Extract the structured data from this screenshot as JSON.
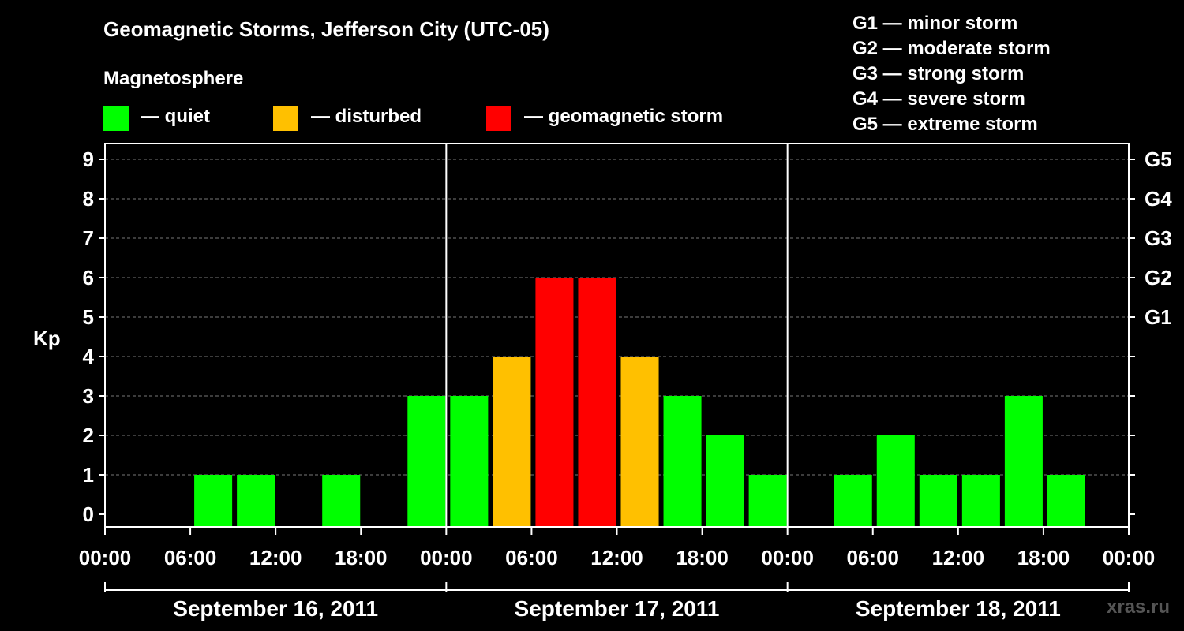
{
  "title": "Geomagnetic Storms, Jefferson City (UTC-05)",
  "subtitle": "Magnetosphere",
  "legend": [
    {
      "label": "— quiet",
      "color": "#00ff00"
    },
    {
      "label": "— disturbed",
      "color": "#ffc000"
    },
    {
      "label": "— geomagnetic storm",
      "color": "#ff0000"
    }
  ],
  "g_scale": [
    "G1 — minor storm",
    "G2 — moderate storm",
    "G3 — strong storm",
    "G4 — severe storm",
    "G5 — extreme storm"
  ],
  "watermark": "xras.ru",
  "chart_data": {
    "type": "bar",
    "ylabel": "Kp",
    "ylim": [
      0,
      9
    ],
    "y_ticks": [
      "0",
      "1",
      "2",
      "3",
      "4",
      "5",
      "6",
      "7",
      "8",
      "9"
    ],
    "right_ticks": [
      {
        "level": 5,
        "label": "G1"
      },
      {
        "level": 6,
        "label": "G2"
      },
      {
        "level": 7,
        "label": "G3"
      },
      {
        "level": 8,
        "label": "G4"
      },
      {
        "level": 9,
        "label": "G5"
      }
    ],
    "x_tick_labels": [
      "00:00",
      "06:00",
      "12:00",
      "18:00",
      "00:00",
      "06:00",
      "12:00",
      "18:00",
      "00:00",
      "06:00",
      "12:00",
      "18:00",
      "00:00"
    ],
    "days": [
      "September 16, 2011",
      "September 17, 2011",
      "September 18, 2011"
    ],
    "interval_hours": 3,
    "values": [
      0,
      0,
      1,
      1,
      0,
      1,
      0,
      3,
      3,
      4,
      6,
      6,
      4,
      3,
      2,
      1,
      0,
      1,
      2,
      1,
      1,
      3,
      1,
      0
    ],
    "colors": {
      "quiet": "#00ff00",
      "disturbed": "#ffc000",
      "storm": "#ff0000"
    },
    "grid": true
  }
}
